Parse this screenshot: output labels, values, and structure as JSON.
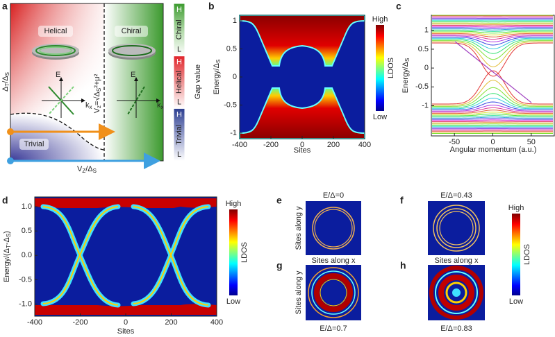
{
  "panel_labels": [
    "a",
    "b",
    "c",
    "d",
    "e",
    "f",
    "g",
    "h"
  ],
  "panel_a": {
    "phases": [
      "Helical",
      "Chiral",
      "Trivial"
    ],
    "y_label": [
      "Δ",
      "T",
      "/Δ",
      "S"
    ],
    "x_label": [
      "V",
      "Z",
      "/Δ",
      "S"
    ],
    "energy_axis": "E",
    "momentum_axis": [
      "k",
      "x"
    ],
    "boundary": [
      "V",
      "z",
      "=√Δ",
      "S",
      "²+μ²"
    ],
    "gap_bar": {
      "segments": [
        {
          "high": "H",
          "name": "Chiral",
          "low": "L"
        },
        {
          "high": "H",
          "name": "Helical",
          "low": "L"
        },
        {
          "high": "H",
          "name": "Trivial",
          "low": "L"
        }
      ],
      "label": "Gap value"
    }
  },
  "panel_b": {
    "xlabel": "Sites",
    "ylabel": [
      "Energy/Δ",
      "S"
    ],
    "xlim": [
      -400,
      400
    ],
    "ylim": [
      -1.1,
      1.1
    ],
    "xticks": [
      -400,
      -200,
      0,
      200,
      400
    ],
    "yticks": [
      -1,
      -0.5,
      0,
      0.5,
      1
    ],
    "colorbar": {
      "label": "LDOS",
      "high": "High",
      "low": "Low"
    }
  },
  "panel_c": {
    "xlabel": "Angular momentum (a.u.)",
    "ylabel": [
      "Energy/Δ",
      "S"
    ],
    "xlim": [
      -80,
      80
    ],
    "ylim": [
      -1.8,
      1.4
    ],
    "xticks": [
      -50,
      0,
      50
    ],
    "yticks": [
      -1,
      -0.5,
      0,
      0.5,
      1
    ]
  },
  "panel_d": {
    "xlabel": "Sites",
    "ylabel": [
      "Energy/(Δ",
      "T",
      "-Δ",
      "S",
      ")"
    ],
    "xlim": [
      -400,
      400
    ],
    "ylim": [
      -1.25,
      1.2
    ],
    "xticks": [
      -400,
      -200,
      0,
      200,
      400
    ],
    "yticks": [
      {
        "value": -1,
        "label": "-1.0"
      },
      {
        "value": -0.5,
        "label": "-0.5"
      },
      {
        "value": 0,
        "label": "0.0"
      },
      {
        "value": 0.5,
        "label": "0.5"
      },
      {
        "value": 1,
        "label": "1.0"
      }
    ],
    "colorbar": {
      "label": "LDOS",
      "high": "High",
      "low": "Low"
    }
  },
  "panels_efgh": {
    "titles": [
      "E/Δ=0",
      "E/Δ=0.43",
      "E/Δ=0.7",
      "E/Δ=0.83"
    ],
    "xlabel": "Sites along x",
    "ylabel": "Sites along y",
    "colorbar": {
      "label": "LDOS",
      "high": "High",
      "low": "Low"
    }
  }
}
